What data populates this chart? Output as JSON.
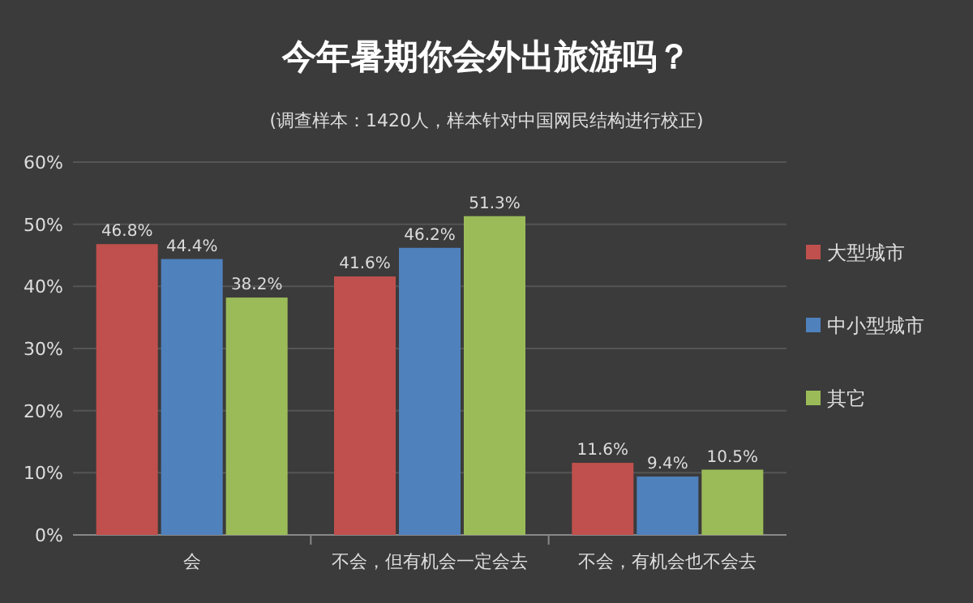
{
  "chart_data": {
    "type": "bar",
    "title": "今年暑期你会外出旅游吗？",
    "subtitle": "(调查样本：1420人，样本针对中国网民结构进行校正)",
    "categories": [
      "会",
      "不会，但有机会一定会去",
      "不会，有机会也不会去"
    ],
    "series": [
      {
        "name": "大型城市",
        "color": "#c0504d",
        "values": [
          46.8,
          41.6,
          11.6
        ],
        "value_labels": [
          "46.8%",
          "41.6%",
          "11.6%"
        ]
      },
      {
        "name": "中小型城市",
        "color": "#4f81bd",
        "values": [
          44.4,
          46.2,
          9.4
        ],
        "value_labels": [
          "44.4%",
          "46.2%",
          "9.4%"
        ]
      },
      {
        "name": "其它",
        "color": "#9bbb59",
        "values": [
          38.2,
          51.3,
          10.5
        ],
        "value_labels": [
          "38.2%",
          "51.3%",
          "10.5%"
        ]
      }
    ],
    "ylim": [
      0,
      60
    ],
    "yticks": [
      {
        "value": 0,
        "label": "0%"
      },
      {
        "value": 10,
        "label": "10%"
      },
      {
        "value": 20,
        "label": "20%"
      },
      {
        "value": 30,
        "label": "30%"
      },
      {
        "value": 40,
        "label": "40%"
      },
      {
        "value": 50,
        "label": "50%"
      },
      {
        "value": 60,
        "label": "60%"
      }
    ],
    "grid": "y",
    "legend": "right"
  }
}
